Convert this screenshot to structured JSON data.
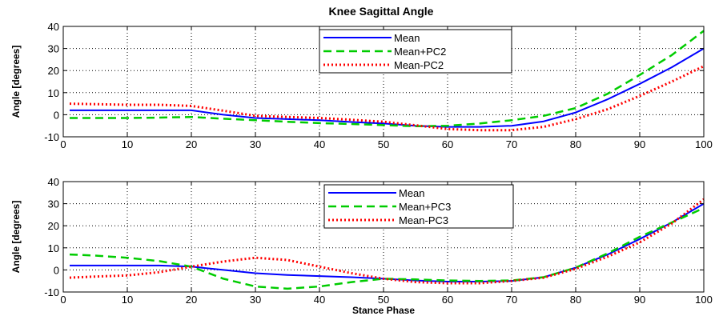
{
  "figure_title": "Knee Sagittal Angle",
  "chart_data": [
    {
      "type": "line",
      "title": "Knee Sagittal Angle",
      "xlabel": "",
      "ylabel": "Angle [degrees]",
      "xlim": [
        0,
        100
      ],
      "ylim": [
        -10,
        40
      ],
      "xticks": [
        0,
        10,
        20,
        30,
        40,
        50,
        60,
        70,
        80,
        90,
        100
      ],
      "yticks": [
        -10,
        0,
        10,
        20,
        30,
        40
      ],
      "grid": true,
      "legend_position": "top-center",
      "x": [
        1,
        5,
        10,
        15,
        20,
        25,
        30,
        35,
        40,
        45,
        50,
        55,
        60,
        65,
        70,
        75,
        80,
        85,
        90,
        95,
        100
      ],
      "series": [
        {
          "name": "Mean",
          "color": "#0000ff",
          "style": "solid",
          "values": [
            2,
            2,
            2,
            2,
            2,
            0,
            -1.5,
            -2,
            -2.5,
            -3.3,
            -4,
            -5,
            -5.5,
            -5.5,
            -5,
            -3,
            1,
            7,
            14,
            21.5,
            30
          ]
        },
        {
          "name": "Mean+PC2",
          "color": "#00cc00",
          "style": "dashed",
          "values": [
            -1.5,
            -1.5,
            -1.5,
            -1.3,
            -1,
            -1.8,
            -2.5,
            -3.2,
            -3.8,
            -4.2,
            -4.7,
            -5.2,
            -5,
            -4,
            -2.5,
            -0.5,
            3,
            9.5,
            18,
            27,
            38
          ]
        },
        {
          "name": "Mean-PC2",
          "color": "#ff0000",
          "style": "dotted",
          "values": [
            5,
            4.8,
            4.5,
            4.5,
            4,
            1.8,
            -0.5,
            -1,
            -1.5,
            -2.3,
            -3.2,
            -4.8,
            -6.5,
            -7,
            -7,
            -5.5,
            -2,
            2.5,
            8.5,
            15,
            22
          ]
        }
      ]
    },
    {
      "type": "line",
      "title": "",
      "xlabel": "Stance Phase",
      "ylabel": "Angle [degrees]",
      "xlim": [
        0,
        100
      ],
      "ylim": [
        -10,
        40
      ],
      "xticks": [
        0,
        10,
        20,
        30,
        40,
        50,
        60,
        70,
        80,
        90,
        100
      ],
      "yticks": [
        -10,
        0,
        10,
        20,
        30,
        40
      ],
      "grid": true,
      "legend_position": "top-center",
      "x": [
        1,
        5,
        10,
        15,
        20,
        25,
        30,
        35,
        40,
        45,
        50,
        55,
        60,
        65,
        70,
        75,
        80,
        85,
        90,
        95,
        100
      ],
      "series": [
        {
          "name": "Mean",
          "color": "#0000ff",
          "style": "solid",
          "values": [
            2,
            2,
            2,
            2,
            1.5,
            0,
            -1.5,
            -2.3,
            -2.8,
            -3.3,
            -4,
            -4.8,
            -5.3,
            -5.3,
            -5,
            -3.3,
            1,
            7,
            14,
            21.5,
            30
          ]
        },
        {
          "name": "Mean+PC3",
          "color": "#00cc00",
          "style": "dashed",
          "values": [
            7,
            6.5,
            5.5,
            4,
            1.5,
            -4,
            -7.5,
            -8.5,
            -7.5,
            -5.5,
            -4,
            -4.3,
            -4.8,
            -5,
            -4.8,
            -3.3,
            1,
            7.5,
            15,
            21.5,
            28
          ]
        },
        {
          "name": "Mean-PC3",
          "color": "#ff0000",
          "style": "dotted",
          "values": [
            -3.5,
            -3,
            -2.5,
            -1,
            1.5,
            3.8,
            5.5,
            4.5,
            1.5,
            -1.5,
            -4,
            -5.5,
            -6,
            -6,
            -5,
            -3.5,
            0.5,
            6,
            12.5,
            21,
            32
          ]
        }
      ]
    }
  ]
}
